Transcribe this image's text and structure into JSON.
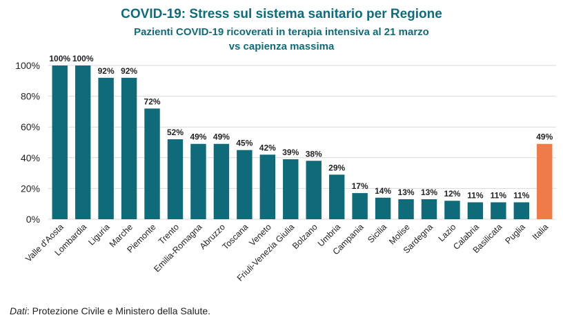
{
  "chart_data": {
    "type": "bar",
    "title": "COVID-19: Stress sul sistema sanitario per Regione",
    "subtitle_lines": [
      "Pazienti COVID-19 ricoverati in terapia intensiva al 21 marzo",
      "vs capienza massima"
    ],
    "categories": [
      "Valle d'Aosta",
      "Lombardia",
      "Liguria",
      "Marche",
      "Piemonte",
      "Trento",
      "Emilia-Romagna",
      "Abruzzo",
      "Toscana",
      "Veneto",
      "Friuli-Venezia Giulia",
      "Bolzano",
      "Umbria",
      "Campania",
      "Sicilia",
      "Molise",
      "Sardegna",
      "Lazio",
      "Calabria",
      "Basilicata",
      "Puglia",
      "Italia"
    ],
    "values": [
      100,
      100,
      92,
      92,
      72,
      52,
      49,
      49,
      45,
      42,
      39,
      38,
      29,
      17,
      14,
      13,
      13,
      12,
      11,
      11,
      11,
      49
    ],
    "value_labels": [
      "100%",
      "100%",
      "92%",
      "92%",
      "72%",
      "52%",
      "49%",
      "49%",
      "45%",
      "42%",
      "39%",
      "38%",
      "29%",
      "17%",
      "14%",
      "13%",
      "13%",
      "12%",
      "11%",
      "11%",
      "11%",
      "49%"
    ],
    "highlight_category": "Italia",
    "ylim": [
      0,
      100
    ],
    "yticks": [
      0,
      20,
      40,
      60,
      80,
      100
    ],
    "ytick_labels": [
      "0%",
      "20%",
      "40%",
      "60%",
      "80%",
      "100%"
    ],
    "grid": true,
    "colors": {
      "bar": "#0f6b7a",
      "highlight": "#f07a4a",
      "grid": "#d9d9d9",
      "text": "#222222"
    }
  },
  "footer": {
    "source_label": "Dati",
    "source_text": ": Protezione Civile e Ministero della Salute."
  }
}
